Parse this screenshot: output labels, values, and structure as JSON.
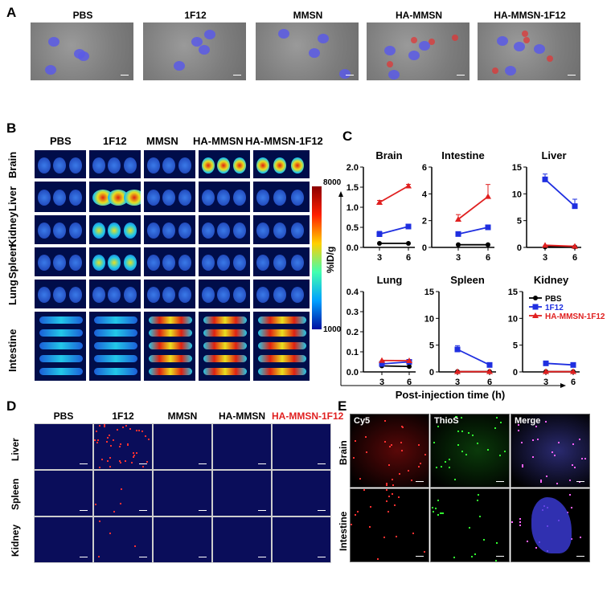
{
  "panels": {
    "a": "A",
    "b": "B",
    "c": "C",
    "d": "D",
    "e": "E"
  },
  "panel_a": {
    "groups": [
      "PBS",
      "1F12",
      "MMSN",
      "HA-MMSN",
      "HA-MMSN-1F12"
    ]
  },
  "panel_b": {
    "groups": [
      "PBS",
      "1F12",
      "MMSN",
      "HA-MMSN",
      "HA-MMSN-1F12"
    ],
    "organs": [
      "Brain",
      "Liver",
      "Kidney",
      "Spleen",
      "Lung",
      "Intestine"
    ],
    "colorbar": {
      "max": "8000",
      "min": "1000",
      "label": "%ID/g"
    }
  },
  "panel_d": {
    "groups": [
      "PBS",
      "1F12",
      "MMSN",
      "HA-MMSN",
      "HA-MMSN-1F12"
    ],
    "highlight_color": "#e02020",
    "organs": [
      "Liver",
      "Spleen",
      "Kidney"
    ]
  },
  "panel_e": {
    "channels": [
      "Cy5",
      "ThioS",
      "Merge"
    ],
    "organs": [
      "Brain",
      "Intestine"
    ]
  },
  "chart_data": {
    "type": "line",
    "ylabel": "%ID/g",
    "xlabel": "Post-injection time (h)",
    "x": [
      3,
      6
    ],
    "legend": {
      "placement": "kidney-panel-top",
      "entries": [
        {
          "name": "PBS",
          "color": "#000000",
          "marker": "circle"
        },
        {
          "name": "1F12",
          "color": "#1f2fe0",
          "marker": "square"
        },
        {
          "name": "HA-MMSN-1F12",
          "color": "#e02020",
          "marker": "triangle"
        }
      ]
    },
    "charts": [
      {
        "title": "Brain",
        "ylim": [
          0,
          2
        ],
        "ticks": [
          "0.0",
          "0.5",
          "1.0",
          "1.5",
          "2.0"
        ],
        "series": [
          {
            "name": "PBS",
            "values": [
              0.1,
              0.1
            ]
          },
          {
            "name": "1F12",
            "values": [
              0.33,
              0.52
            ],
            "err": [
              0.07,
              0.03
            ]
          },
          {
            "name": "HA-MMSN-1F12",
            "values": [
              1.12,
              1.53
            ],
            "err": [
              0.05,
              0.04
            ]
          }
        ]
      },
      {
        "title": "Intestine",
        "ylim": [
          0,
          6
        ],
        "ticks": [
          "0",
          "2",
          "4",
          "6"
        ],
        "series": [
          {
            "name": "PBS",
            "values": [
              0.2,
              0.2
            ]
          },
          {
            "name": "1F12",
            "values": [
              1.0,
              1.5
            ]
          },
          {
            "name": "HA-MMSN-1F12",
            "values": [
              2.1,
              3.8
            ],
            "err": [
              0.35,
              0.9
            ]
          }
        ]
      },
      {
        "title": "Liver",
        "ylim": [
          0,
          15
        ],
        "ticks": [
          "0",
          "5",
          "10",
          "15"
        ],
        "series": [
          {
            "name": "PBS",
            "values": [
              0.1,
              0.1
            ]
          },
          {
            "name": "1F12",
            "values": [
              12.7,
              7.7
            ],
            "err": [
              1.0,
              1.3
            ]
          },
          {
            "name": "HA-MMSN-1F12",
            "values": [
              0.4,
              0.2
            ]
          }
        ]
      },
      {
        "title": "Lung",
        "ylim": [
          0,
          0.4
        ],
        "ticks": [
          "0.0",
          "0.1",
          "0.2",
          "0.3",
          "0.4"
        ],
        "series": [
          {
            "name": "PBS",
            "values": [
              0.03,
              0.027
            ]
          },
          {
            "name": "1F12",
            "values": [
              0.04,
              0.05
            ]
          },
          {
            "name": "HA-MMSN-1F12",
            "values": [
              0.057,
              0.056
            ]
          }
        ]
      },
      {
        "title": "Spleen",
        "ylim": [
          0,
          15
        ],
        "ticks": [
          "0",
          "5",
          "10",
          "15"
        ],
        "series": [
          {
            "name": "PBS",
            "values": [
              0.05,
              0.05
            ]
          },
          {
            "name": "1F12",
            "values": [
              4.2,
              1.3
            ],
            "err": [
              0.7,
              0.1
            ]
          },
          {
            "name": "HA-MMSN-1F12",
            "values": [
              0.05,
              0.05
            ]
          }
        ]
      },
      {
        "title": "Kidney",
        "ylim": [
          0,
          15
        ],
        "ticks": [
          "0",
          "5",
          "10",
          "15"
        ],
        "series": [
          {
            "name": "PBS",
            "values": [
              0.05,
              0.05
            ]
          },
          {
            "name": "1F12",
            "values": [
              1.6,
              1.3
            ]
          },
          {
            "name": "HA-MMSN-1F12",
            "values": [
              0.05,
              0.05
            ]
          }
        ]
      }
    ]
  }
}
